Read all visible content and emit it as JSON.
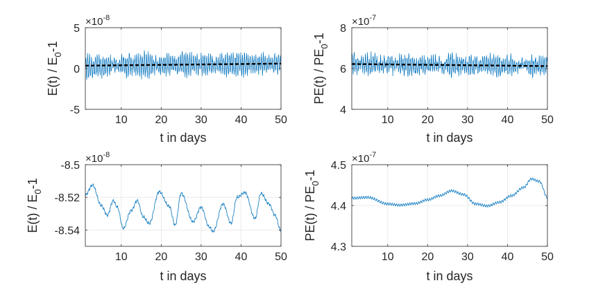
{
  "colors": {
    "series": "#0072BD",
    "trend": "#000000",
    "grid": "#e6e6e6",
    "axis": "#262626"
  },
  "chart_data": [
    {
      "type": "line",
      "xlabel": "t in days",
      "ylabel_main": "E(t) / E",
      "ylabel_sub": "0",
      "ylabel_tail": "-1",
      "exponent_base": "×10",
      "exponent_power": "-8",
      "xlim": [
        1,
        50
      ],
      "ylim": [
        -5,
        5
      ],
      "xticks": [
        10,
        20,
        30,
        40,
        50
      ],
      "yticks": [
        -5,
        0,
        5
      ],
      "grid": true,
      "series": [
        {
          "name": "signal",
          "kind": "oscillation",
          "mean_start": 0.3,
          "mean_end": 0.6,
          "amplitude": 1.4,
          "period_days": 0.5,
          "noise": 0.5
        },
        {
          "name": "trend",
          "kind": "dashed",
          "x": [
            1,
            50
          ],
          "y": [
            0.35,
            0.6
          ]
        }
      ]
    },
    {
      "type": "line",
      "xlabel": "t in days",
      "ylabel_main": "PE(t) / PE",
      "ylabel_sub": "0",
      "ylabel_tail": "-1",
      "exponent_base": "×10",
      "exponent_power": "-7",
      "xlim": [
        1,
        50
      ],
      "ylim": [
        4,
        8
      ],
      "xticks": [
        10,
        20,
        30,
        40,
        50
      ],
      "yticks": [
        4,
        6,
        8
      ],
      "grid": true,
      "series": [
        {
          "name": "signal",
          "kind": "oscillation",
          "mean_start": 6.22,
          "mean_end": 6.12,
          "amplitude": 0.45,
          "period_days": 0.5,
          "noise": 0.25
        },
        {
          "name": "trend",
          "kind": "dashed",
          "x": [
            1,
            50
          ],
          "y": [
            6.22,
            6.12
          ]
        }
      ]
    },
    {
      "type": "line",
      "xlabel": "t in days",
      "ylabel_main": "E(t) / E",
      "ylabel_sub": "0",
      "ylabel_tail": "-1",
      "exponent_base": "×10",
      "exponent_power": "-8",
      "xlim": [
        1,
        50
      ],
      "ylim": [
        -8.55,
        -8.5
      ],
      "xticks": [
        10,
        20,
        30,
        40,
        50
      ],
      "yticks": [
        -8.54,
        -8.52,
        -8.5
      ],
      "ytick_labels": [
        "-8.54",
        "-8.52",
        "-8.5"
      ],
      "grid": true,
      "series": [
        {
          "name": "signal",
          "kind": "polyline",
          "x": [
            1,
            2.8,
            5,
            6.5,
            8,
            9,
            10.5,
            12.5,
            14,
            15.5,
            17,
            19.5,
            22,
            23.5,
            25,
            28,
            30,
            32,
            33,
            35.5,
            37.5,
            39,
            41,
            43.5,
            45,
            47,
            48.5,
            50
          ],
          "y": [
            -8.5185,
            -8.5125,
            -8.525,
            -8.531,
            -8.522,
            -8.526,
            -8.539,
            -8.528,
            -8.522,
            -8.532,
            -8.536,
            -8.5165,
            -8.5255,
            -8.537,
            -8.5175,
            -8.535,
            -8.526,
            -8.538,
            -8.541,
            -8.524,
            -8.536,
            -8.52,
            -8.517,
            -8.533,
            -8.5175,
            -8.524,
            -8.531,
            -8.5405
          ]
        }
      ]
    },
    {
      "type": "line",
      "xlabel": "t in days",
      "ylabel_main": "PE(t) / PE",
      "ylabel_sub": "0",
      "ylabel_tail": "-1",
      "exponent_base": "×10",
      "exponent_power": "-7",
      "xlim": [
        1,
        50
      ],
      "ylim": [
        4.3,
        4.5
      ],
      "xticks": [
        10,
        20,
        30,
        40,
        50
      ],
      "yticks": [
        4.3,
        4.4,
        4.5
      ],
      "ytick_labels": [
        "4.3",
        "4.4",
        "4.5"
      ],
      "grid": true,
      "series": [
        {
          "name": "signal",
          "kind": "polyline_ripple",
          "ripple_amplitude": 0.003,
          "ripple_period_days": 0.55,
          "x": [
            1,
            5,
            10,
            13,
            17,
            20,
            23,
            26,
            29,
            32,
            35,
            38,
            41,
            44,
            46,
            48,
            50
          ],
          "y": [
            4.418,
            4.42,
            4.404,
            4.401,
            4.405,
            4.414,
            4.424,
            4.436,
            4.427,
            4.404,
            4.399,
            4.408,
            4.424,
            4.444,
            4.465,
            4.459,
            4.42
          ]
        }
      ]
    }
  ]
}
